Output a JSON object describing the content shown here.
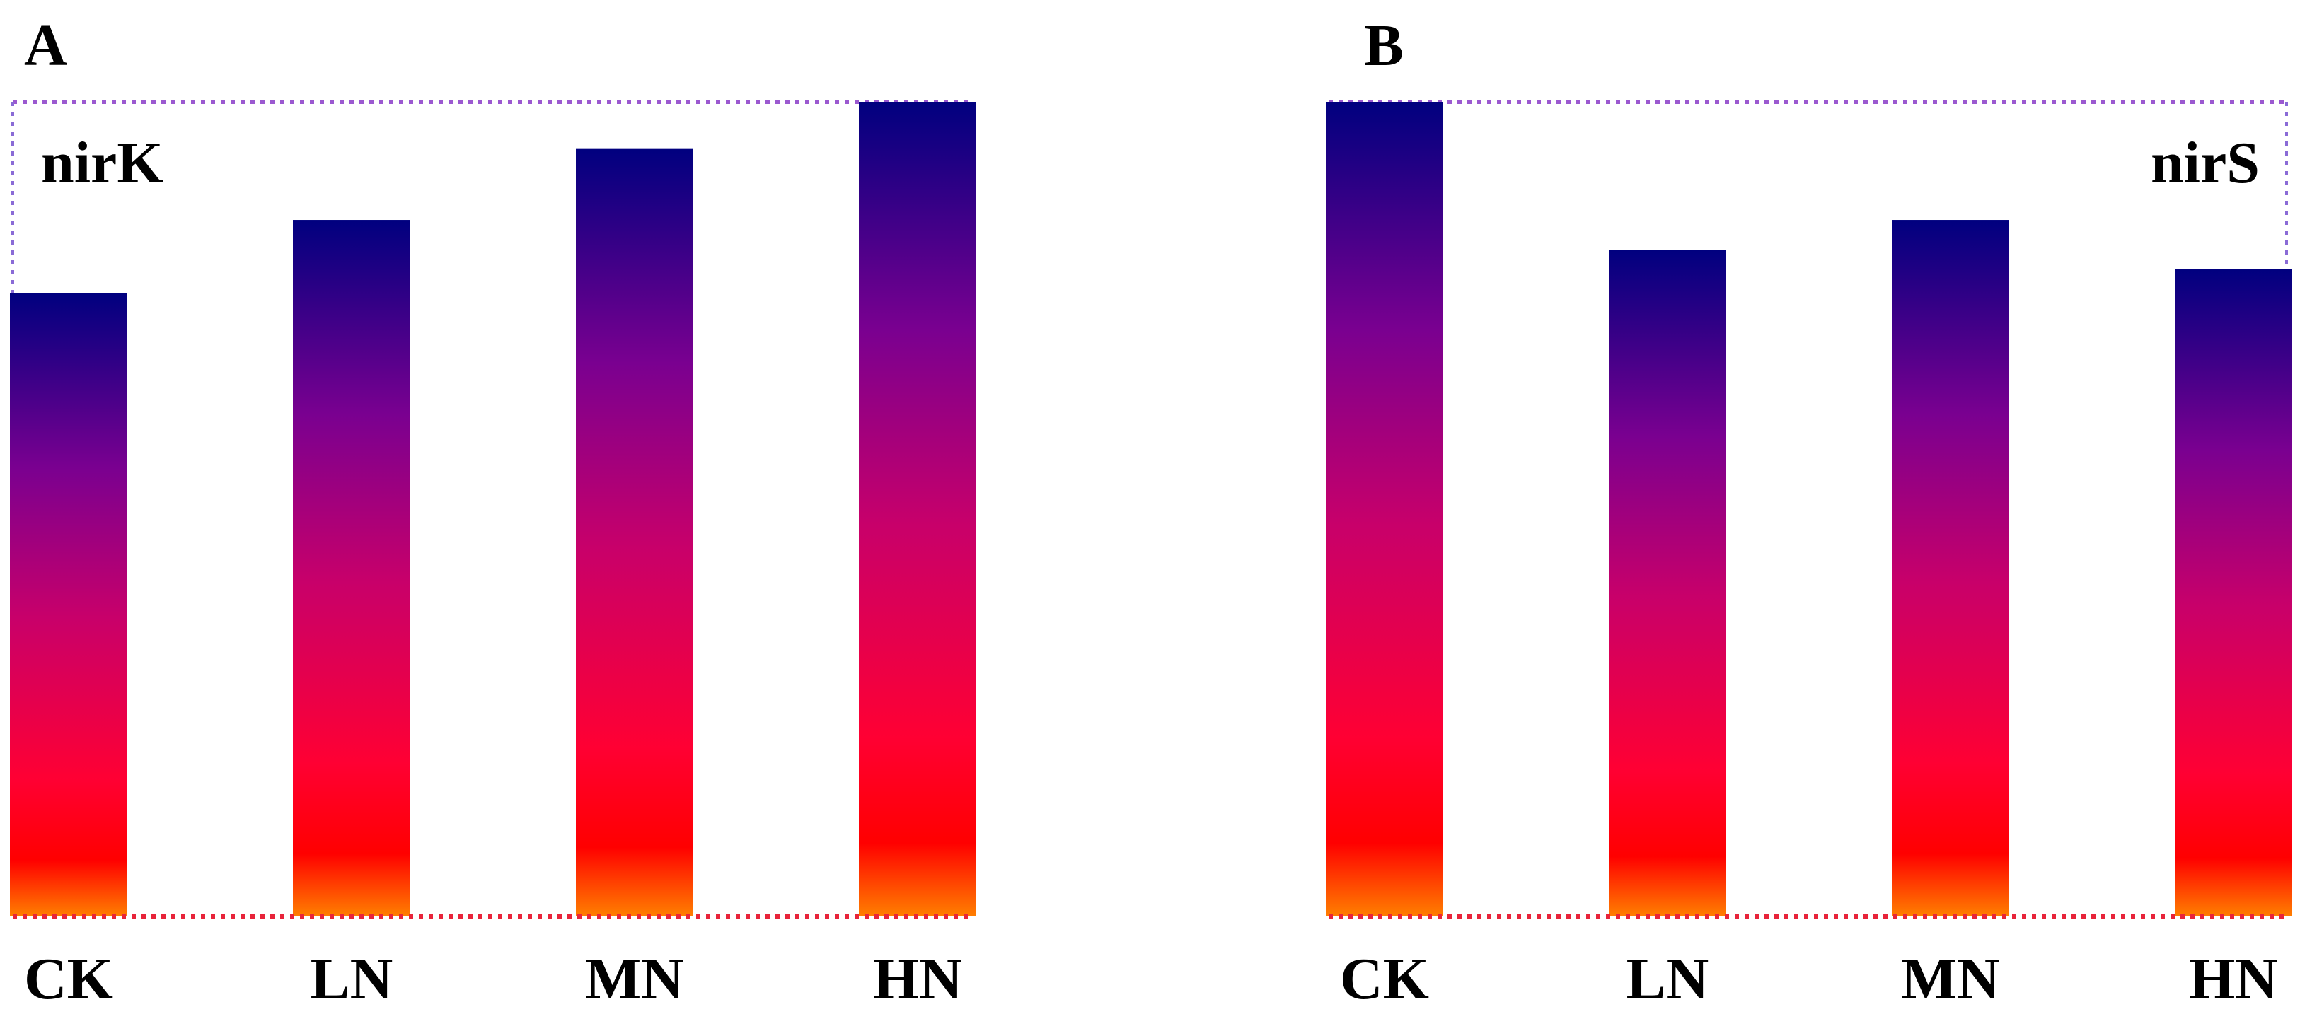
{
  "colors": {
    "gradient_top": "#00007f",
    "gradient_upper": "#7a0090",
    "gradient_mid": "#c8006a",
    "gradient_lower": "#ff0033",
    "gradient_red": "#ff0000",
    "gradient_bottom": "#ff7f00",
    "frame_top": "#9b59d0",
    "frame_side": "#8a6bd6",
    "frame_bottom": "#e8243a"
  },
  "chart_data": [
    {
      "type": "bar",
      "panel": "A",
      "gene": "nirK",
      "gene_label_align": "left",
      "categories": [
        "CK",
        "LN",
        "MN",
        "HN"
      ],
      "values": [
        0.765,
        0.855,
        0.943,
        1.0
      ],
      "ylim": [
        0,
        1
      ],
      "yaxis_visible": false,
      "grid": false,
      "legend": "none"
    },
    {
      "type": "bar",
      "panel": "B",
      "gene": "nirS",
      "gene_label_align": "right",
      "categories": [
        "CK",
        "LN",
        "MN",
        "HN"
      ],
      "values": [
        1.0,
        0.818,
        0.855,
        0.795
      ],
      "ylim": [
        0,
        1
      ],
      "yaxis_visible": false,
      "grid": false,
      "legend": "none"
    }
  ]
}
